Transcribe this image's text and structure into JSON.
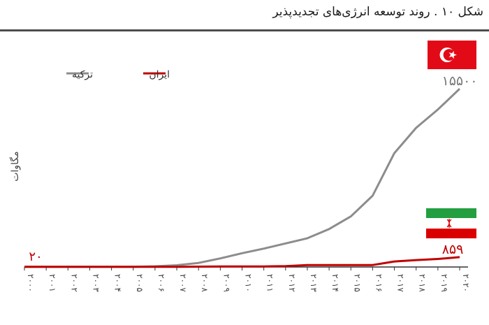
{
  "figure": {
    "title": "شکل ۱۰ . روند توسعه انرژی‌های تجدیدپذیر"
  },
  "chart_data": {
    "type": "line",
    "title": "",
    "ylabel": "مگاوات",
    "xlabel": "",
    "grid": false,
    "legend_position": "top-left",
    "ylim": [
      0,
      16000
    ],
    "x": [
      "2000",
      "2001",
      "2002",
      "2003",
      "2004",
      "2005",
      "2006",
      "2007",
      "2008",
      "2009",
      "2010",
      "2011",
      "2012",
      "2013",
      "2014",
      "2015",
      "2016",
      "2017",
      "2018",
      "2019",
      "2020"
    ],
    "x_tick_labels": [
      "۲۰۰۰",
      "۲۰۰۱",
      "۲۰۰۲",
      "۲۰۰۳",
      "۲۰۰۴",
      "۲۰۰۵",
      "۲۰۰۶",
      "۲۰۰۷",
      "۲۰۰۸",
      "۲۰۰۹",
      "۲۰۱۰",
      "۲۰۱۱",
      "۲۰۱۲",
      "۲۰۱۳",
      "۲۰۱۴",
      "۲۰۱۵",
      "۲۰۱۶",
      "۲۰۱۷",
      "۲۰۱۸",
      "۲۰۱۹",
      "۲۰۲۰"
    ],
    "series": [
      {
        "name": "ترکیه",
        "color": "#8c8c8c",
        "values": [
          20,
          20,
          20,
          20,
          20,
          20,
          60,
          150,
          350,
          750,
          1200,
          1600,
          2050,
          2500,
          3300,
          4400,
          6200,
          9900,
          12100,
          13700,
          15500
        ],
        "end_label": "۱۵۵۰۰",
        "flag_icon": "turkey-flag-icon"
      },
      {
        "name": "ایران",
        "color": "#c00000",
        "values": [
          20,
          20,
          20,
          20,
          20,
          20,
          20,
          20,
          30,
          40,
          50,
          50,
          70,
          170,
          170,
          170,
          170,
          480,
          600,
          700,
          859
        ],
        "end_label": "۸۵۹",
        "start_label": "۲۰",
        "flag_icon": "iran-flag-icon"
      }
    ]
  }
}
